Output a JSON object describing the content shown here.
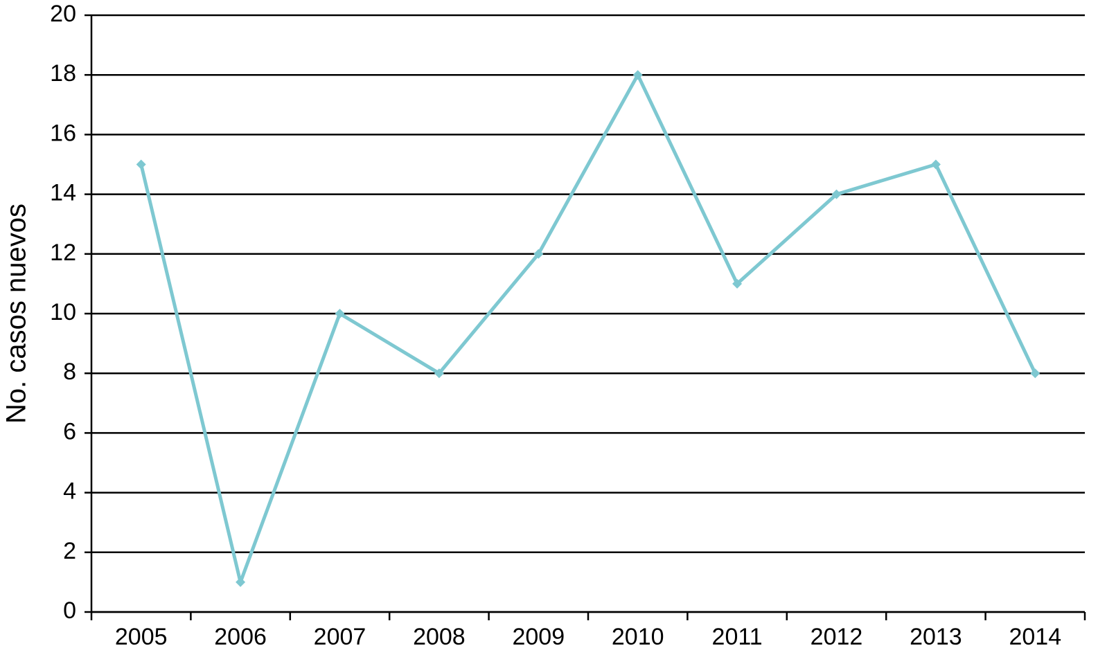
{
  "chart_data": {
    "type": "line",
    "y_label": "No. casos nuevos",
    "categories": [
      "2005",
      "2006",
      "2007",
      "2008",
      "2009",
      "2010",
      "2011",
      "2012",
      "2013",
      "2014"
    ],
    "values": [
      15,
      1,
      10,
      8,
      12,
      18,
      11,
      14,
      15,
      8
    ],
    "color": "#7ec8d1",
    "ylim": [
      0,
      20
    ],
    "yticks": [
      0,
      2,
      4,
      6,
      8,
      10,
      12,
      14,
      16,
      18,
      20
    ],
    "grid": true
  }
}
